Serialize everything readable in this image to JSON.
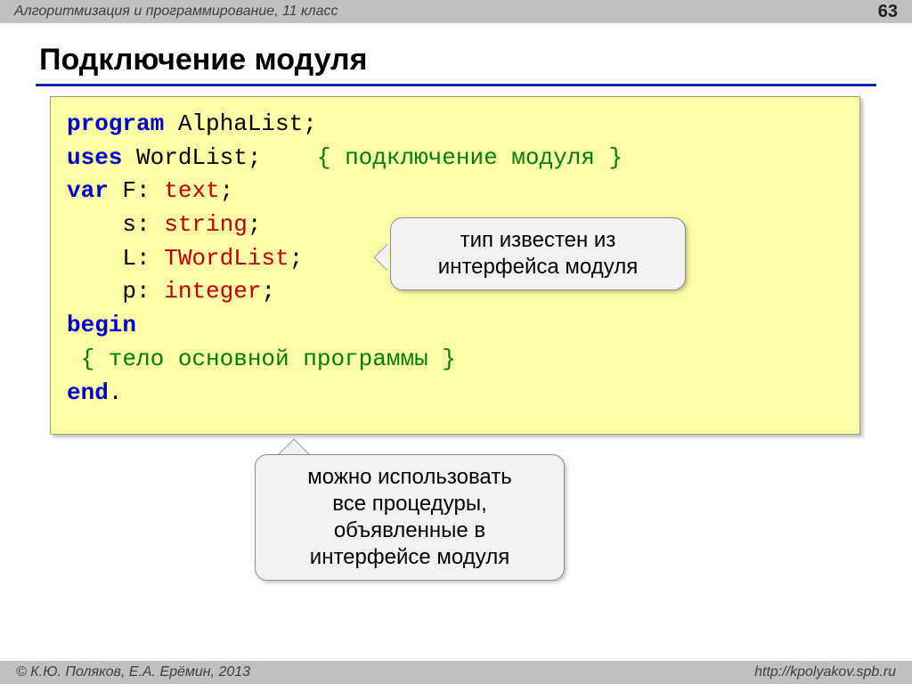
{
  "header": {
    "subject": "Алгоритмизация и программирование, 11 класс",
    "page": "63"
  },
  "title": "Подключение модуля",
  "code": {
    "line1_kw": "program",
    "line1_id": " AlphaList;",
    "line2_kw": "uses",
    "line2_id": " WordList;    ",
    "line2_cmt": "{ подключение модуля }",
    "line3_kw": "var",
    "line3_id": " F: ",
    "line3_typ": "text",
    "line3_end": ";",
    "line4_id": "    s: ",
    "line4_typ": "string",
    "line4_end": ";",
    "line5_id": "    L: ",
    "line5_typ": "TWordList",
    "line5_end": ";",
    "line6_id": "    p: ",
    "line6_typ": "integer",
    "line6_end": ";",
    "line7_kw": "begin",
    "line8_cmt": " { тело основной программы }",
    "line9_kw": "end",
    "line9_end": "."
  },
  "callouts": {
    "c1_line1": "тип известен из",
    "c1_line2": "интерфейса модуля",
    "c2_line1": "можно использовать",
    "c2_line2": "все процедуры,",
    "c2_line3": "объявленные в",
    "c2_line4": "интерфейсе модуля"
  },
  "footer": {
    "left": "© К.Ю. Поляков, Е.А. Ерёмин, 2013",
    "right": "http://kpolyakov.spb.ru"
  },
  "style": {
    "bg": "#ffffff",
    "bar_bg": "#c0c0c0",
    "title_underline": "#1020b0",
    "code_bg": "#fdfca7",
    "code_border": "#a0a060",
    "kw_color": "#0000d0",
    "typ_color": "#c00000",
    "cmt_color": "#008000",
    "callout_bg": "#f2f2f2",
    "callout_border": "#909090",
    "font_code": "Courier New",
    "font_ui": "Arial",
    "code_fontsize_pt": 20,
    "title_fontsize_pt": 26,
    "callout_fontsize_pt": 18
  }
}
